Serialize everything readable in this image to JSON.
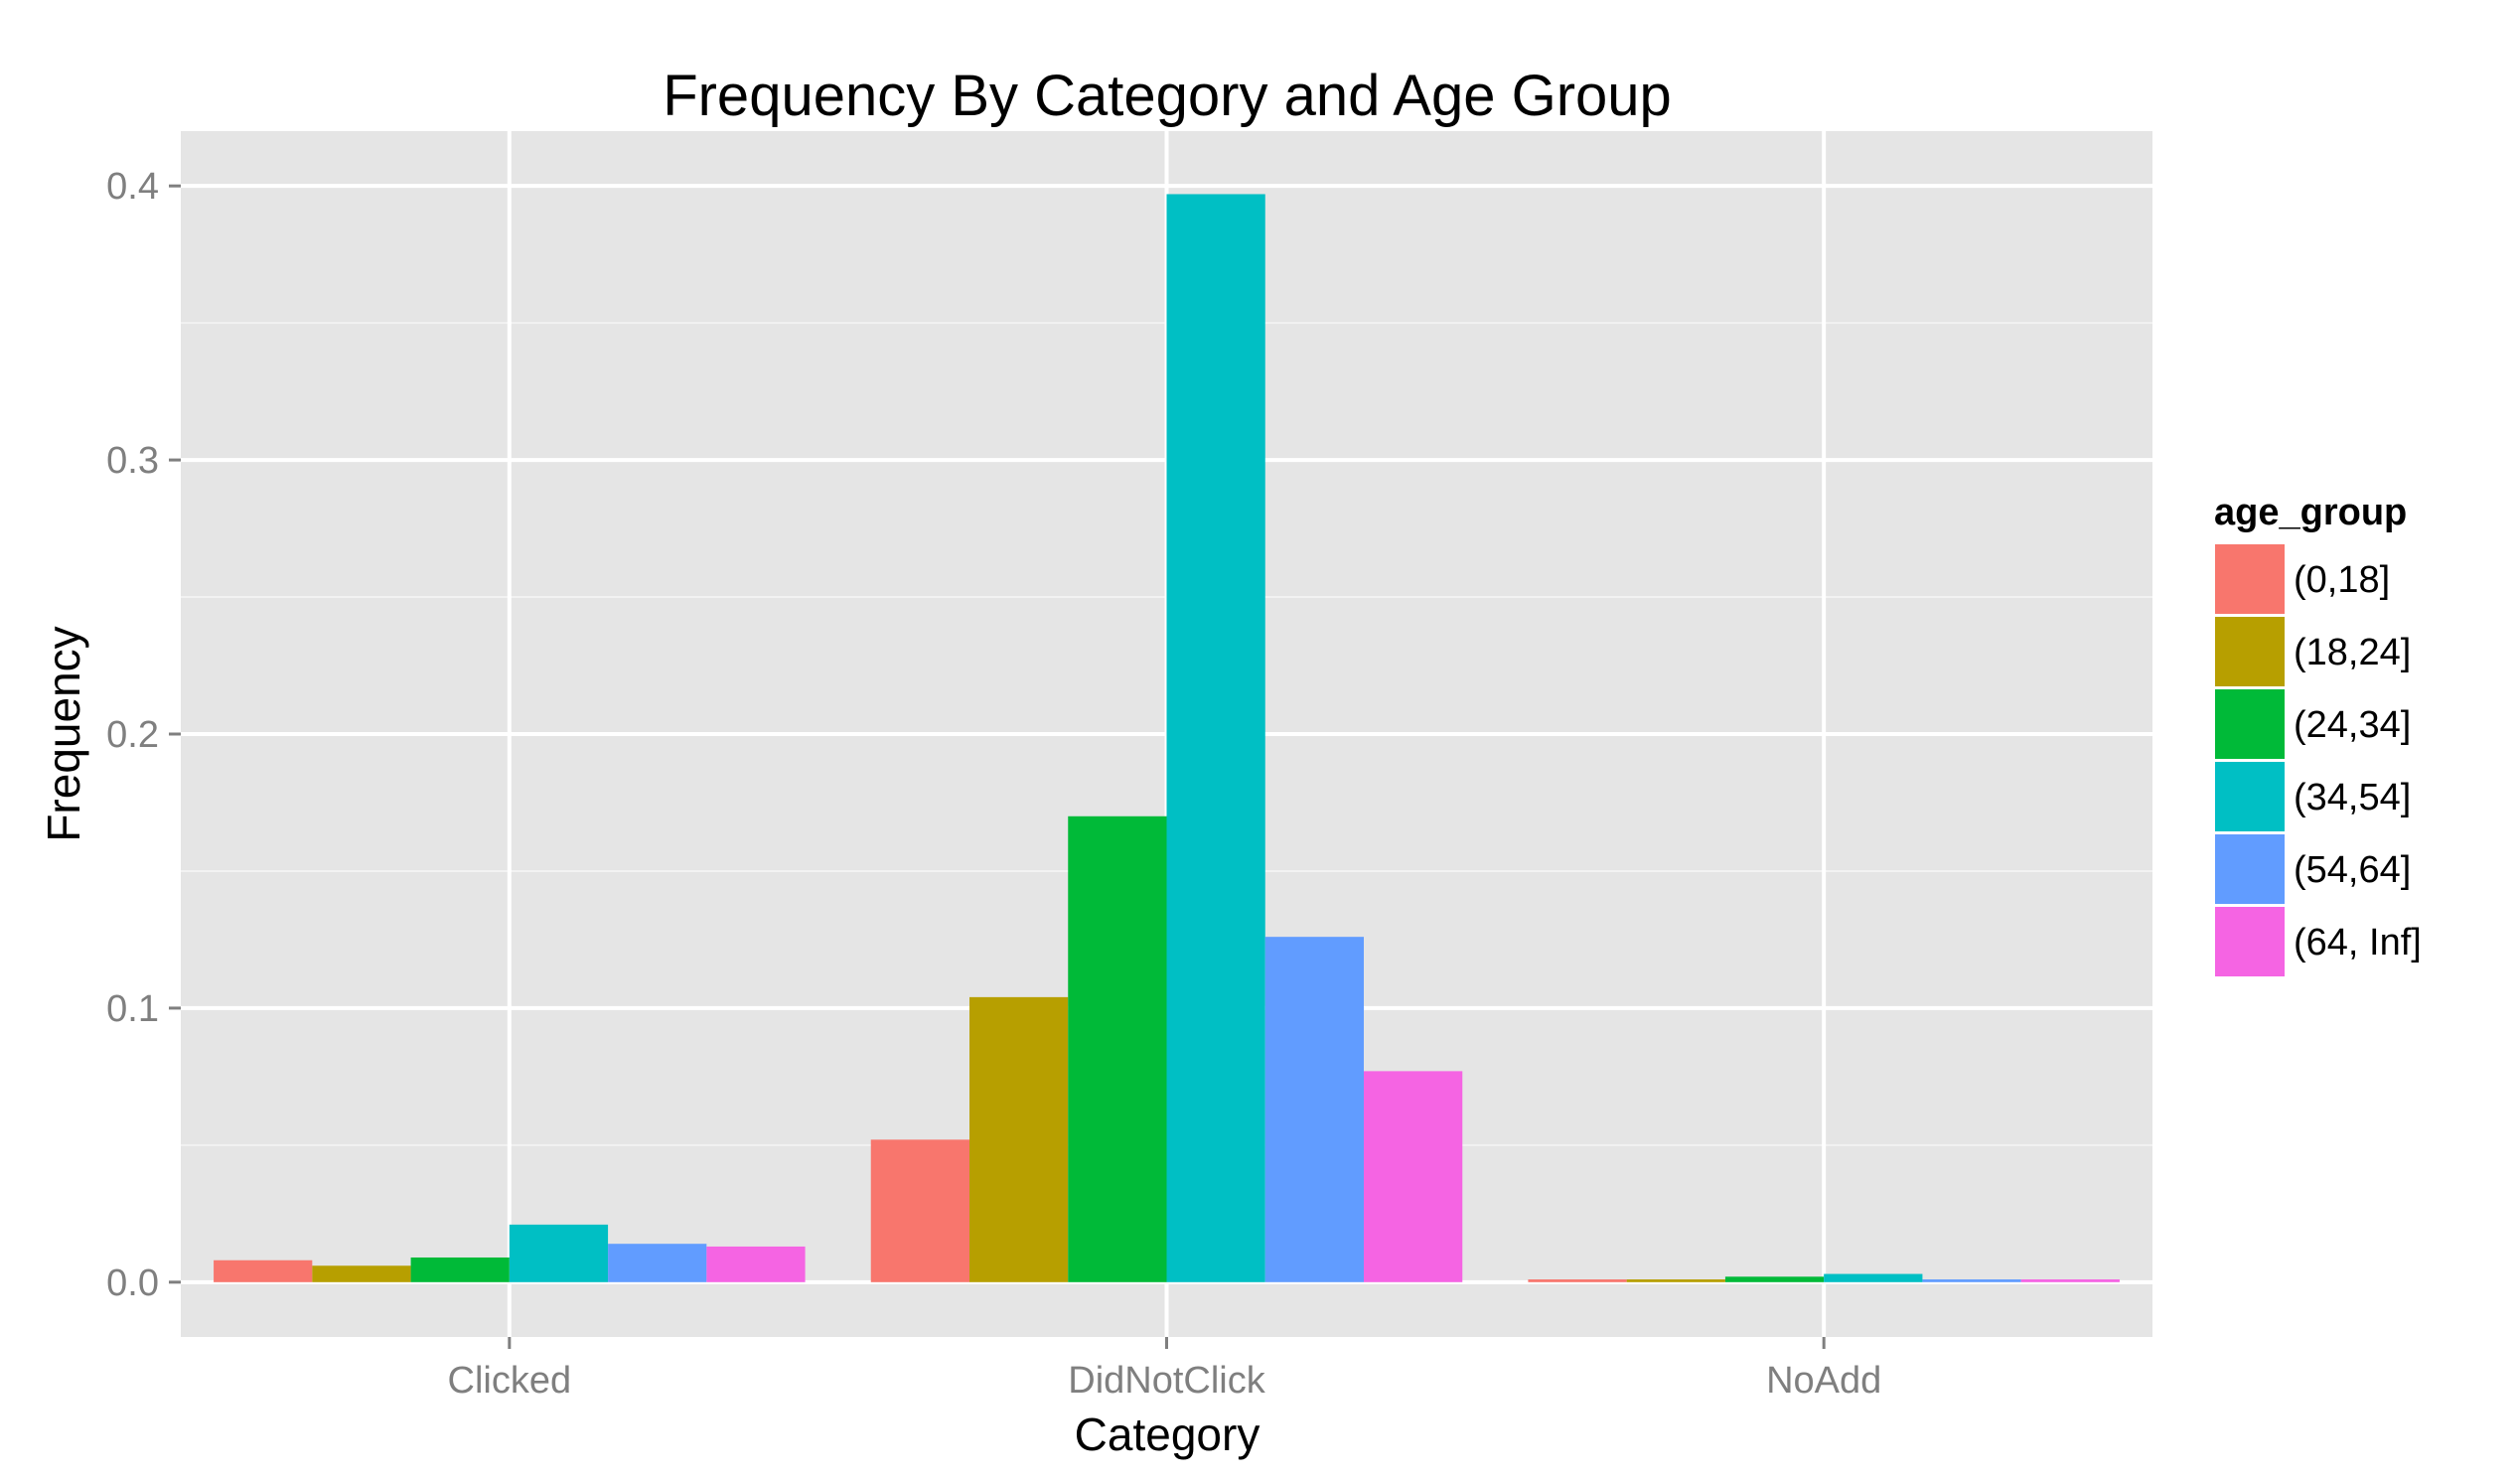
{
  "chart_data": {
    "type": "bar",
    "title": "Frequency By Category and Age Group",
    "xlabel": "Category",
    "ylabel": "Frequency",
    "categories": [
      "Clicked",
      "DidNotClick",
      "NoAdd"
    ],
    "ylim": [
      -0.02,
      0.42
    ],
    "yticks": [
      0.0,
      0.1,
      0.2,
      0.3,
      0.4
    ],
    "ytick_labels": [
      "0.0",
      "0.1",
      "0.2",
      "0.3",
      "0.4"
    ],
    "grid": true,
    "legend": {
      "title": "age_group",
      "position": "right"
    },
    "series": [
      {
        "name": "(0,18]",
        "color": "#F8766D",
        "values": [
          0.008,
          0.052,
          0.001
        ]
      },
      {
        "name": "(18,24]",
        "color": "#B79F00",
        "values": [
          0.006,
          0.104,
          0.001
        ]
      },
      {
        "name": "(24,34]",
        "color": "#00BA38",
        "values": [
          0.009,
          0.17,
          0.002
        ]
      },
      {
        "name": "(34,54]",
        "color": "#00BFC4",
        "values": [
          0.021,
          0.397,
          0.003
        ]
      },
      {
        "name": "(54,64]",
        "color": "#619CFF",
        "values": [
          0.014,
          0.126,
          0.001
        ]
      },
      {
        "name": "(64, Inf]",
        "color": "#F564E3",
        "values": [
          0.013,
          0.077,
          0.001
        ]
      }
    ],
    "colors": {
      "panel_bg": "#E5E5E5",
      "grid_major": "#FFFFFF",
      "grid_minor": "#F2F2F2",
      "axis_text": "#7F7F7F"
    }
  }
}
